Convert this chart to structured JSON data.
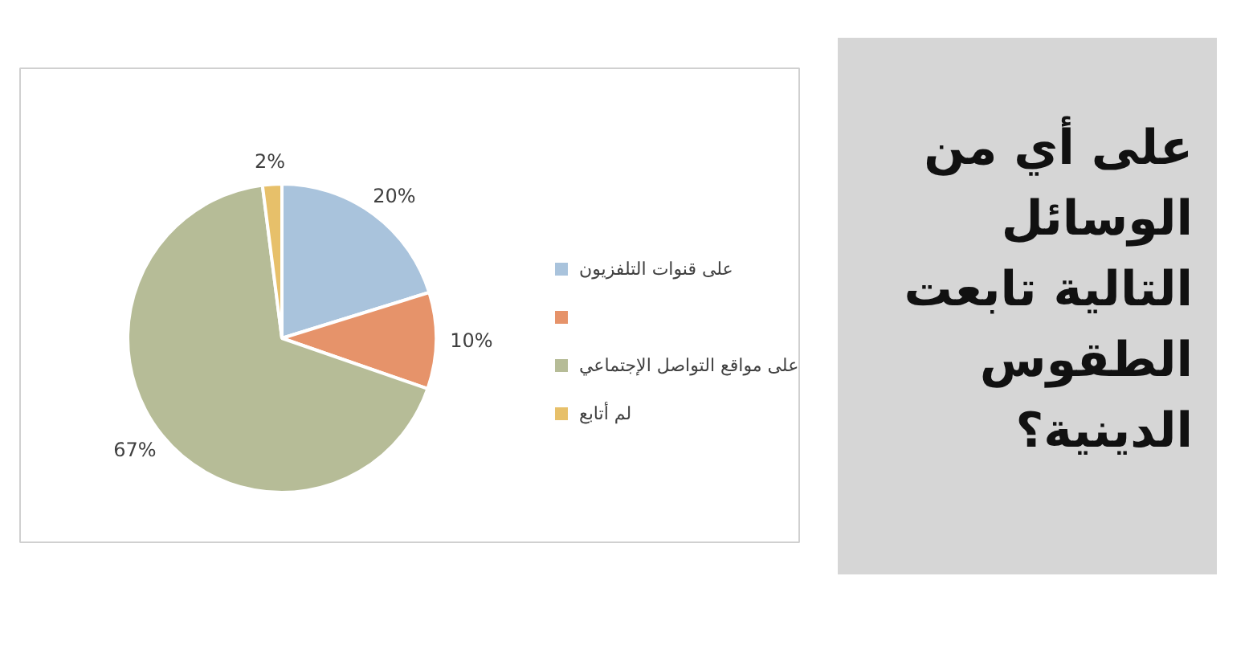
{
  "chart_data": {
    "type": "pie",
    "title": "على أي من الوسائل التالية تابعت الطقوس الدينية؟",
    "categories": [
      "على قنوات التلفزيون",
      null,
      "على مواقع التواصل الإجتماعي",
      "لم أتابع"
    ],
    "values": [
      20,
      10,
      67,
      2
    ],
    "colors": [
      "#a9c3dc",
      "#e6936a",
      "#b6bc97",
      "#e7c06a"
    ],
    "value_labels": [
      "20%",
      "10%",
      "67%",
      "2%"
    ],
    "legend": "right"
  }
}
